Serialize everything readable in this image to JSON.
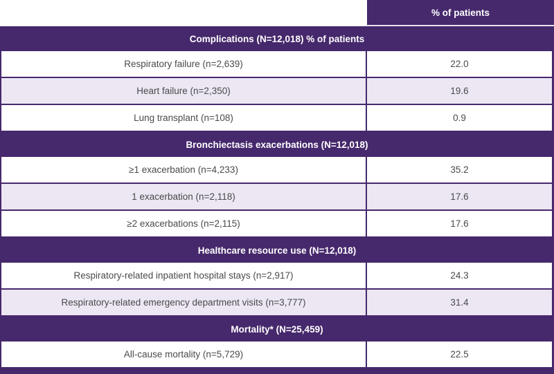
{
  "colors": {
    "brand_purple": "#46286c",
    "row_alt_lavender": "#ece7f3",
    "row_text_gray": "#4a4a4a",
    "header_text": "#ffffff",
    "separator_light": "#e7e2f0"
  },
  "chart_data": {
    "type": "table",
    "value_column_header": "% of patients",
    "columns": [
      "",
      "% of patients"
    ],
    "sections": [
      {
        "header": "Complications (N=12,018) % of patients",
        "rows": [
          {
            "label": "Respiratory failure (n=2,639)",
            "value": "22.0"
          },
          {
            "label": "Heart failure (n=2,350)",
            "value": "19.6"
          },
          {
            "label": "Lung transplant (n=108)",
            "value": "0.9"
          }
        ]
      },
      {
        "header": "Bronchiectasis exacerbations (N=12,018)",
        "rows": [
          {
            "label": "≥1 exacerbation (n=4,233)",
            "value": "35.2"
          },
          {
            "label": "1 exacerbation (n=2,118)",
            "value": "17.6"
          },
          {
            "label": "≥2 exacerbations (n=2,115)",
            "value": "17.6"
          }
        ]
      },
      {
        "header": "Healthcare resource use (N=12,018)",
        "rows": [
          {
            "label": "Respiratory-related inpatient hospital stays (n=2,917)",
            "value": "24.3"
          },
          {
            "label": "Respiratory-related emergency department visits (n=3,777)",
            "value": "31.4"
          }
        ]
      },
      {
        "header": "Mortality* (N=25,459)",
        "rows": [
          {
            "label": "All-cause mortality (n=5,729)",
            "value": "22.5"
          }
        ]
      }
    ]
  }
}
